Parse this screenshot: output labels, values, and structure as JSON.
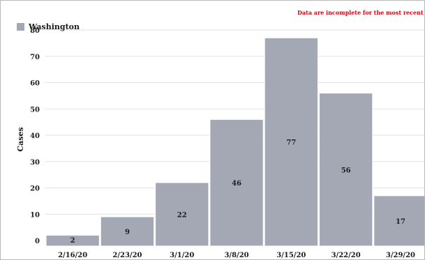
{
  "chart_data": {
    "type": "bar",
    "categories": [
      "2/16/20",
      "2/23/20",
      "3/1/20",
      "3/8/20",
      "3/15/20",
      "3/22/20",
      "3/29/20"
    ],
    "series": [
      {
        "name": "Washington",
        "values": [
          2,
          9,
          22,
          46,
          77,
          56,
          17
        ],
        "color": "#a3a8b4"
      }
    ],
    "data_labels": [
      "2",
      "9",
      "22",
      "46",
      "77",
      "56",
      "17"
    ],
    "ylabel": "Cases",
    "xlabel": "",
    "ylim": [
      0,
      80
    ],
    "yticks": [
      0,
      10,
      20,
      30,
      40,
      50,
      60,
      70,
      80
    ],
    "grid": true,
    "legend_position": "top-left",
    "annotation": "Data are incomplete for the most recent dates",
    "annotation_color": "#e0000f",
    "grid_color": "#e2e2e2",
    "text_color": "#1c1c1c"
  }
}
